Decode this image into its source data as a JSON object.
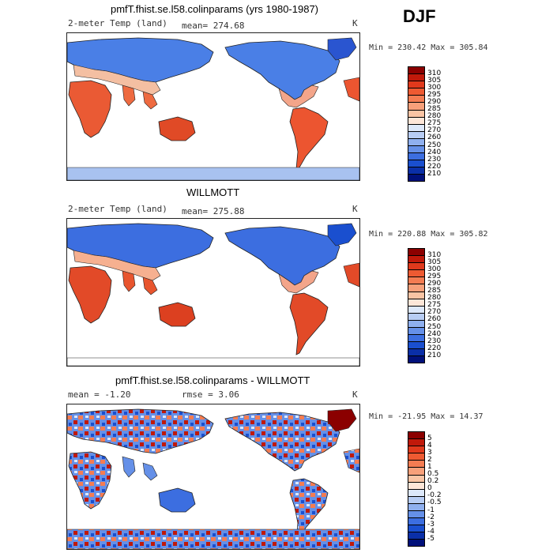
{
  "season": "DJF",
  "panels": [
    {
      "id": "model",
      "title": "pmfT.fhist.se.l58.colinparams (yrs 1980-1987)",
      "left_label": "2-meter Temp (land)",
      "stat_label": "mean= 274.68",
      "units": "K",
      "minmax": "Min = 230.42 Max = 305.84",
      "colorbar": {
        "labels": [
          "310",
          "305",
          "300",
          "295",
          "290",
          "285",
          "280",
          "275",
          "270",
          "260",
          "250",
          "240",
          "230",
          "220",
          "210"
        ],
        "colors": [
          "#8b0000",
          "#c0190a",
          "#e0391c",
          "#ee5a32",
          "#f47c52",
          "#f7a07a",
          "#f9c4a4",
          "#fde6d8",
          "#dde8fa",
          "#b8cdf4",
          "#8fb0ef",
          "#6590e8",
          "#3c6ee0",
          "#1a4fcf",
          "#0a2fa8",
          "#00107a"
        ]
      }
    },
    {
      "id": "obs",
      "title": "WILLMOTT",
      "left_label": "2-meter Temp (land)",
      "stat_label": "mean= 275.88",
      "units": "K",
      "minmax": "Min = 220.88 Max = 305.82",
      "colorbar": {
        "labels": [
          "310",
          "305",
          "300",
          "295",
          "290",
          "285",
          "280",
          "275",
          "270",
          "260",
          "250",
          "240",
          "230",
          "220",
          "210"
        ],
        "colors": [
          "#8b0000",
          "#c0190a",
          "#e0391c",
          "#ee5a32",
          "#f47c52",
          "#f7a07a",
          "#f9c4a4",
          "#fde6d8",
          "#dde8fa",
          "#b8cdf4",
          "#8fb0ef",
          "#6590e8",
          "#3c6ee0",
          "#1a4fcf",
          "#0a2fa8",
          "#00107a"
        ]
      }
    },
    {
      "id": "diff",
      "title": "pmfT.fhist.se.l58.colinparams - WILLMOTT",
      "left_label": "mean =  -1.20",
      "stat_label": "rmse =   3.06",
      "units": "K",
      "minmax": "Min = -21.95 Max =  14.37",
      "colorbar": {
        "labels": [
          "5",
          "4",
          "3",
          "2",
          "1",
          "0.5",
          "0.2",
          "0",
          "-0.2",
          "-0.5",
          "-1",
          "-2",
          "-3",
          "-4",
          "-5"
        ],
        "colors": [
          "#8b0000",
          "#c0190a",
          "#e0391c",
          "#ee5a32",
          "#f47c52",
          "#f7a07a",
          "#f9c4a4",
          "#fde6d8",
          "#dde8fa",
          "#b8cdf4",
          "#8fb0ef",
          "#6590e8",
          "#3c6ee0",
          "#1a4fcf",
          "#0a2fa8",
          "#00107a"
        ]
      }
    }
  ]
}
